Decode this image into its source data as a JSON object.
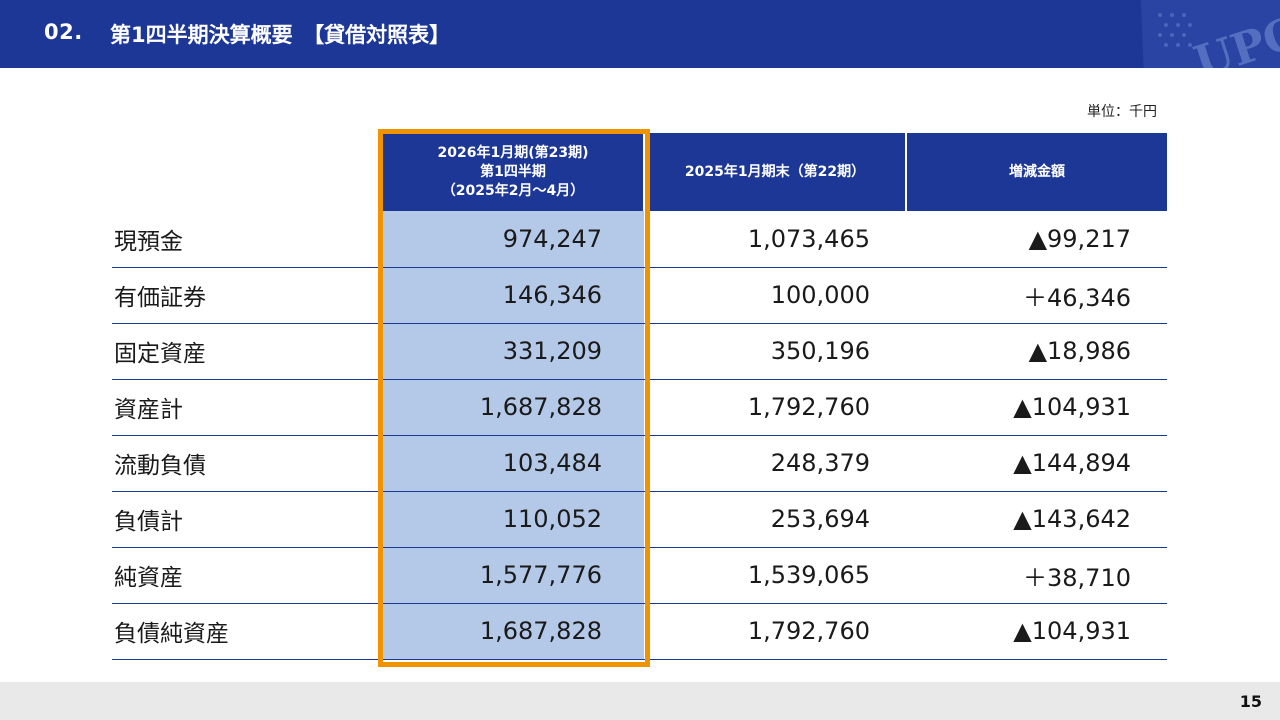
{
  "header": {
    "number": "02.",
    "title": "第1四半期決算概要　【貸借対照表】",
    "emblem_text": "UPC",
    "color": "#1c3796"
  },
  "unit_label": "単位：千円",
  "table": {
    "columns": [
      {
        "lines": [
          "2026年1月期(第23期)",
          "第1四半期",
          "（2025年2月～4月）"
        ]
      },
      {
        "lines": [
          "2025年1月期末（第22期）"
        ]
      },
      {
        "lines": [
          "増減金額"
        ]
      }
    ],
    "rows": [
      {
        "label": "現預金",
        "current": "974,247",
        "prior": "1,073,465",
        "change": "▲99,217"
      },
      {
        "label": "有価証券",
        "current": "146,346",
        "prior": "100,000",
        "change": "＋46,346"
      },
      {
        "label": "固定資産",
        "current": "331,209",
        "prior": "350,196",
        "change": "▲18,986"
      },
      {
        "label": "資産計",
        "current": "1,687,828",
        "prior": "1,792,760",
        "change": "▲104,931"
      },
      {
        "label": "流動負債",
        "current": "103,484",
        "prior": "248,379",
        "change": "▲144,894"
      },
      {
        "label": "負債計",
        "current": "110,052",
        "prior": "253,694",
        "change": "▲143,642"
      },
      {
        "label": "純資産",
        "current": "1,577,776",
        "prior": "1,539,065",
        "change": "＋38,710"
      },
      {
        "label": "負債純資産",
        "current": "1,687,828",
        "prior": "1,792,760",
        "change": "▲104,931"
      }
    ],
    "highlight_color": "#ef9300",
    "current_fill": "#b4c8e8"
  },
  "footer": {
    "page_number": "15"
  }
}
